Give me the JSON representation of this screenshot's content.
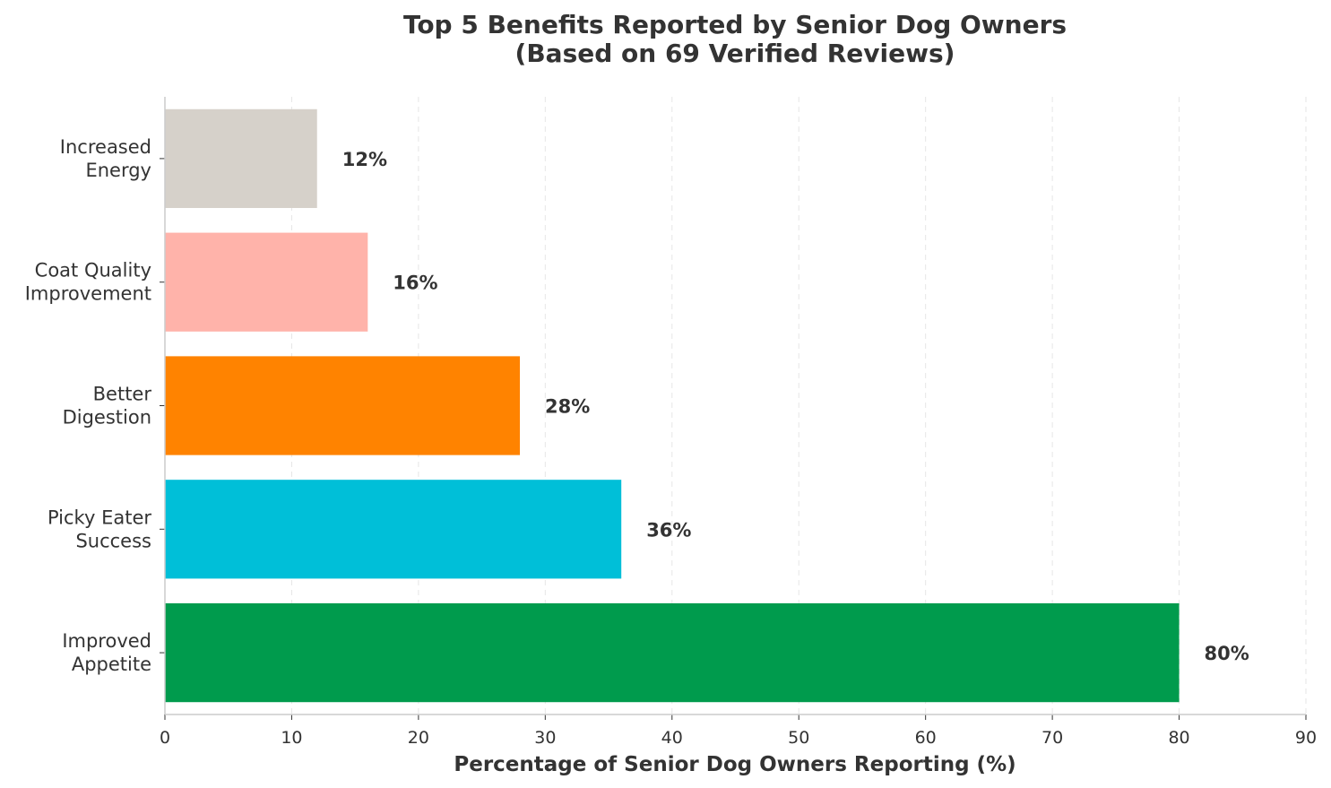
{
  "chart_data": {
    "type": "bar",
    "orientation": "horizontal",
    "title": "Top 5 Benefits Reported by Senior Dog Owners",
    "subtitle": "(Based on 69 Verified Reviews)",
    "xlabel": "Percentage of Senior Dog Owners Reporting (%)",
    "ylabel": "",
    "xlim": [
      0,
      90
    ],
    "x_ticks": [
      0,
      10,
      20,
      30,
      40,
      50,
      60,
      70,
      80,
      90
    ],
    "grid": "vertical dashed",
    "legend": "none",
    "categories": [
      [
        "Improved",
        "Appetite"
      ],
      [
        "Picky Eater",
        "Success"
      ],
      [
        "Better",
        "Digestion"
      ],
      [
        "Coat Quality",
        "Improvement"
      ],
      [
        "Increased",
        "Energy"
      ]
    ],
    "values": [
      80,
      36,
      28,
      16,
      12
    ],
    "value_labels": [
      "80%",
      "36%",
      "28%",
      "16%",
      "12%"
    ],
    "colors": [
      "#009B4D",
      "#00BFD8",
      "#FF8300",
      "#FFB3AA",
      "#D6D1CA"
    ]
  }
}
